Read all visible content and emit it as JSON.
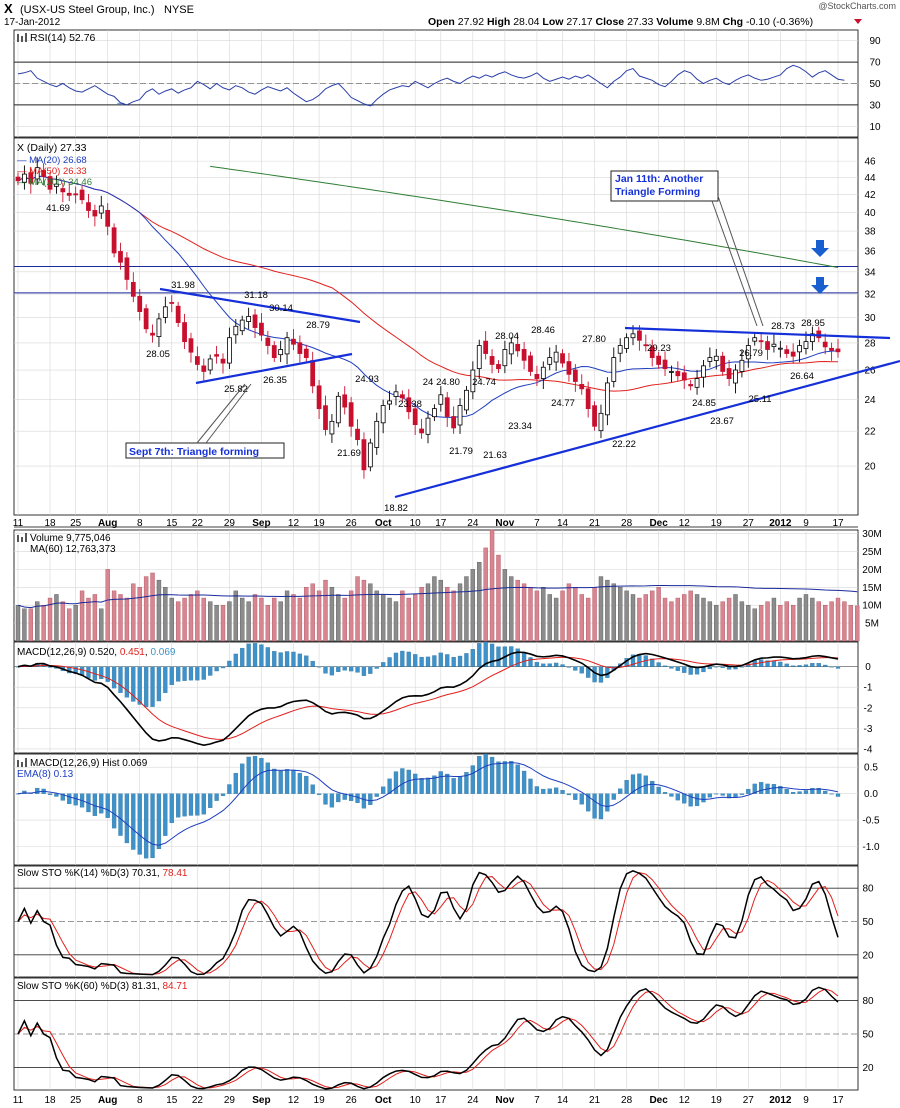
{
  "header": {
    "symbol": "X",
    "company": "(USX-US Steel Group, Inc.)",
    "exchange": "NYSE",
    "date": "17-Jan-2012",
    "watermark": "@StockCharts.com",
    "open_label": "Open",
    "open": "27.92",
    "high_label": "High",
    "high": "28.04",
    "low_label": "Low",
    "low": "27.17",
    "close_label": "Close",
    "close": "27.33",
    "volume_label": "Volume",
    "volume": "9.8M",
    "chg_label": "Chg",
    "chg": "-0.10 (-0.36%)"
  },
  "colors": {
    "up": "#000000",
    "down": "#c8102e",
    "ma20": "#1f3fbf",
    "ma50": "#e0201c",
    "ma200": "#2e7d32",
    "trend": "#1530d8",
    "hist": "#3f92c9",
    "vol_up": "#8c8c8c",
    "vol_down": "#d78590",
    "grid": "#d7d7d7",
    "arrow": "#1a5fd0"
  },
  "chart_data": [
    {
      "panel": "rsi",
      "type": "line",
      "label": "RSI(14) 52.76",
      "yticks": [
        10,
        30,
        50,
        70,
        90
      ],
      "ylim": [
        0,
        100
      ],
      "levels": [
        30,
        50,
        70
      ],
      "values": [
        59,
        60,
        62,
        55,
        52,
        49,
        47,
        50,
        46,
        43,
        42,
        45,
        48,
        44,
        40,
        38,
        32,
        30,
        33,
        35,
        42,
        45,
        40,
        43,
        45,
        41,
        44,
        46,
        52,
        49,
        45,
        50,
        46,
        44,
        48,
        46,
        42,
        40,
        44,
        47,
        45,
        43,
        46,
        41,
        37,
        33,
        35,
        39,
        45,
        48,
        50,
        44,
        37,
        34,
        31,
        29,
        35,
        40,
        44,
        46,
        48,
        47,
        52,
        49,
        46,
        50,
        53,
        55,
        52,
        50,
        54,
        57,
        55,
        58,
        56,
        59,
        61,
        58,
        56,
        55,
        57,
        60,
        55,
        52,
        54,
        56,
        54,
        57,
        55,
        58,
        54,
        50,
        46,
        52,
        56,
        62,
        64,
        57,
        55,
        53,
        49,
        47,
        52,
        58,
        62,
        60,
        54,
        50,
        53,
        55,
        51,
        49,
        53,
        56,
        58,
        55,
        53,
        54,
        56,
        58,
        64,
        67,
        65,
        61,
        56,
        60,
        62,
        58,
        54,
        53
      ]
    },
    {
      "panel": "price",
      "type": "candlestick",
      "label": "X (Daily) 27.33",
      "x_tick_labels": [
        "11",
        "18",
        "25",
        "Aug",
        "8",
        "15",
        "22",
        "29",
        "Sep",
        "12",
        "19",
        "26",
        "Oct",
        "10",
        "17",
        "24",
        "Nov",
        "7",
        "14",
        "21",
        "28",
        "Dec",
        "12",
        "19",
        "27",
        "2012",
        "9",
        "17"
      ],
      "yticks": [
        20,
        22,
        24,
        26,
        28,
        30,
        32,
        34,
        36,
        38,
        40,
        42,
        44,
        46
      ],
      "ylim": [
        17.5,
        49
      ],
      "scale": "log",
      "close": [
        43.6,
        44.4,
        43.3,
        45.2,
        44.1,
        42.6,
        43.2,
        42.3,
        41.9,
        42.0,
        41.4,
        40.2,
        39.6,
        40.7,
        38.5,
        35.8,
        34.9,
        33.3,
        31.8,
        30.5,
        29.1,
        28.6,
        29.9,
        30.9,
        31.2,
        29.6,
        28.1,
        27.3,
        26.4,
        25.9,
        26.8,
        27.0,
        26.5,
        28.4,
        29.3,
        29.8,
        30.1,
        29.2,
        28.6,
        27.8,
        26.9,
        27.5,
        28.4,
        27.9,
        27.2,
        26.9,
        24.9,
        23.4,
        22.1,
        22.6,
        24.2,
        23.5,
        22.3,
        21.5,
        19.8,
        21.3,
        22.6,
        23.6,
        23.9,
        24.5,
        24.1,
        23.2,
        22.4,
        21.9,
        22.8,
        23.4,
        24.3,
        22.9,
        22.2,
        23.6,
        24.6,
        26.0,
        27.8,
        27.2,
        26.4,
        26.1,
        27.5,
        28.0,
        27.4,
        26.7,
        25.9,
        25.4,
        26.2,
        26.9,
        27.3,
        26.5,
        25.7,
        25.2,
        24.7,
        23.4,
        22.3,
        23.1,
        25.1,
        26.9,
        27.8,
        28.4,
        28.7,
        28.2,
        27.8,
        26.9,
        26.4,
        26.1,
        25.9,
        25.6,
        25.3,
        24.9,
        25.4,
        26.3,
        26.9,
        27.0,
        25.9,
        25.4,
        26.0,
        26.7,
        27.8,
        28.4,
        28.1,
        27.5,
        27.9,
        27.6,
        27.2,
        27.0,
        27.8,
        28.1,
        28.7,
        28.4,
        27.7,
        27.43,
        27.33
      ],
      "annotations": [
        "41.69",
        "31.98",
        "28.05",
        "25.82",
        "31.18",
        "30.14",
        "26.35",
        "28.79",
        "24.93",
        "21.69",
        "18.82",
        "23.38",
        "24.80",
        "24",
        "21.79",
        "24.74",
        "21.63",
        "28.04",
        "23.34",
        "28.46",
        "24.77",
        "27.80",
        "22.22",
        "29.23",
        "24.85",
        "23.67",
        "26.79",
        "25.11",
        "28.73",
        "26.64",
        "28.95"
      ],
      "series": [
        {
          "name": "MA(20)",
          "value": "26.68"
        },
        {
          "name": "MA(50)",
          "value": "26.33"
        },
        {
          "name": "MA(200)",
          "value": "34.46"
        }
      ],
      "horizontal_levels": [
        34.5,
        32.1
      ],
      "callouts": [
        "Jan 11th: Another Triangle Forming",
        "Sept 7th: Triangle forming"
      ]
    },
    {
      "panel": "volume",
      "type": "bar",
      "label": "Volume 9,775,046",
      "ma_label": "MA(60) 12,763,373",
      "yticks": [
        "5M",
        "10M",
        "15M",
        "20M",
        "25M",
        "30M"
      ],
      "ylim": [
        0,
        31
      ],
      "values": [
        10,
        9,
        9,
        11,
        10,
        12,
        13,
        11,
        9,
        10,
        14,
        12,
        13,
        9,
        20,
        14,
        13,
        12,
        16,
        15,
        18,
        19,
        17,
        15,
        12,
        11,
        12,
        13,
        14,
        12,
        11,
        10,
        10,
        11,
        14,
        12,
        11,
        13,
        12,
        10,
        12,
        11,
        14,
        13,
        12,
        15,
        16,
        14,
        17,
        15,
        13,
        12,
        14,
        18,
        17,
        16,
        14,
        13,
        12,
        11,
        14,
        12,
        13,
        15,
        16,
        18,
        17,
        15,
        14,
        16,
        18,
        20,
        22,
        26,
        31,
        24,
        20,
        18,
        17,
        16,
        15,
        14,
        15,
        13,
        12,
        14,
        16,
        15,
        13,
        12,
        15,
        18,
        17,
        16,
        15,
        14,
        13,
        12,
        13,
        14,
        15,
        12,
        11,
        12,
        13,
        14,
        13,
        12,
        11,
        10,
        11,
        12,
        13,
        11,
        10,
        9,
        10,
        11,
        12,
        10,
        11,
        10,
        12,
        13,
        12,
        11,
        10,
        11,
        12,
        11,
        10,
        9.8
      ],
      "ma_value": 12.76
    },
    {
      "panel": "macd",
      "type": "line",
      "label": "MACD(12,26,9)",
      "values_text": [
        "0.520",
        "0.451",
        "0.069"
      ],
      "yticks": [
        0,
        -1,
        -2,
        -3,
        -4
      ],
      "ylim": [
        -4.2,
        1.2
      ]
    },
    {
      "panel": "macd-hist",
      "type": "bar",
      "label": "MACD(12,26,9) Hist",
      "value_text": "0.069",
      "ema_label": "EMA(8) 0.13",
      "yticks": [
        0.5,
        0.0,
        -0.5,
        -1.0
      ],
      "ylim": [
        -1.35,
        0.75
      ]
    },
    {
      "panel": "sto14",
      "type": "line",
      "label": "Slow STO %K(14) %D(3)",
      "values_text": [
        "70.31",
        "78.41"
      ],
      "yticks": [
        20,
        50,
        80
      ],
      "ylim": [
        0,
        100
      ]
    },
    {
      "panel": "sto60",
      "type": "line",
      "label": "Slow STO %K(60) %D(3)",
      "values_text": [
        "81.31",
        "84.71"
      ],
      "yticks": [
        20,
        50,
        80
      ],
      "ylim": [
        0,
        100
      ]
    }
  ]
}
